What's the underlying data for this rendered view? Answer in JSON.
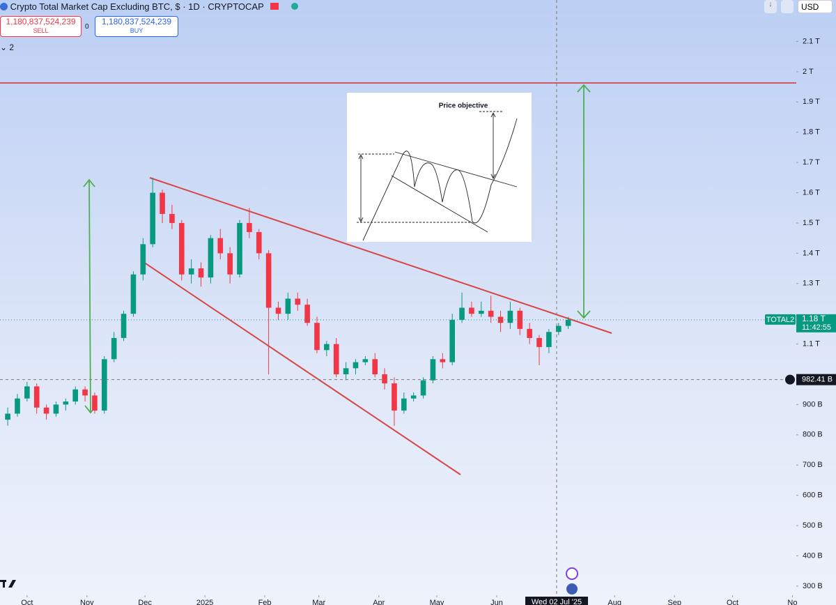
{
  "header": {
    "title": "Crypto Total Market Cap Excluding BTC, $ · 1D · CRYPTOCAP",
    "sell_price": "1,180,837,524,239",
    "sell_label": "SELL",
    "spread": "0",
    "buy_price": "1,180,837,524,239",
    "buy_label": "BUY",
    "indicators_count": "2",
    "currency": "USD"
  },
  "chart_data": {
    "type": "candlestick",
    "symbol_label": "TOTAL2",
    "x": [
      "2024-09-21",
      "2024-09-26",
      "2024-10-01",
      "2024-10-06",
      "2024-10-11",
      "2024-10-16",
      "2024-10-21",
      "2024-10-26",
      "2024-10-31",
      "2024-11-05",
      "2024-11-10",
      "2024-11-15",
      "2024-11-20",
      "2024-11-25",
      "2024-11-30",
      "2024-12-05",
      "2024-12-10",
      "2024-12-15",
      "2024-12-20",
      "2024-12-25",
      "2024-12-30",
      "2025-01-04",
      "2025-01-09",
      "2025-01-14",
      "2025-01-19",
      "2025-01-24",
      "2025-01-29",
      "2025-02-03",
      "2025-02-08",
      "2025-02-13",
      "2025-02-18",
      "2025-02-23",
      "2025-02-28",
      "2025-03-05",
      "2025-03-10",
      "2025-03-15",
      "2025-03-20",
      "2025-03-25",
      "2025-03-30",
      "2025-04-04",
      "2025-04-09",
      "2025-04-14",
      "2025-04-19",
      "2025-04-24",
      "2025-04-29",
      "2025-05-04",
      "2025-05-09",
      "2025-05-14",
      "2025-05-19",
      "2025-05-24",
      "2025-05-29",
      "2025-06-03",
      "2025-06-08",
      "2025-06-13",
      "2025-06-18",
      "2025-06-23",
      "2025-06-28",
      "2025-07-03",
      "2025-07-08"
    ],
    "open": [
      850,
      870,
      920,
      960,
      890,
      870,
      900,
      910,
      950,
      930,
      880,
      1050,
      1120,
      1200,
      1330,
      1430,
      1600,
      1530,
      1500,
      1330,
      1350,
      1320,
      1450,
      1400,
      1330,
      1500,
      1470,
      1400,
      1220,
      1200,
      1250,
      1230,
      1170,
      1080,
      1100,
      1000,
      1020,
      1040,
      1050,
      1000,
      970,
      880,
      920,
      930,
      980,
      1050,
      1040,
      1180,
      1220,
      1200,
      1210,
      1190,
      1170,
      1210,
      1150,
      1120,
      1090,
      1140,
      1160
    ],
    "high": [
      890,
      935,
      975,
      970,
      900,
      910,
      920,
      960,
      960,
      940,
      1060,
      1140,
      1210,
      1340,
      1450,
      1650,
      1610,
      1560,
      1510,
      1380,
      1370,
      1460,
      1480,
      1420,
      1510,
      1550,
      1480,
      1410,
      1240,
      1270,
      1270,
      1250,
      1190,
      1110,
      1120,
      1040,
      1050,
      1060,
      1070,
      1020,
      990,
      940,
      940,
      990,
      1060,
      1070,
      1200,
      1270,
      1240,
      1240,
      1260,
      1210,
      1240,
      1220,
      1170,
      1130,
      1150,
      1170,
      1190
    ],
    "low": [
      830,
      860,
      910,
      870,
      850,
      860,
      880,
      900,
      910,
      870,
      870,
      1040,
      1110,
      1190,
      1310,
      1420,
      1500,
      1480,
      1310,
      1300,
      1290,
      1300,
      1380,
      1300,
      1320,
      1450,
      1380,
      1000,
      1180,
      1180,
      1210,
      1160,
      1070,
      1060,
      990,
      980,
      1000,
      1030,
      990,
      950,
      830,
      870,
      910,
      920,
      970,
      1020,
      1030,
      1170,
      1190,
      1190,
      1170,
      1140,
      1150,
      1130,
      1100,
      1030,
      1070,
      1130,
      1150
    ],
    "close": [
      870,
      920,
      960,
      890,
      870,
      900,
      910,
      950,
      930,
      880,
      1050,
      1120,
      1200,
      1330,
      1430,
      1600,
      1530,
      1500,
      1330,
      1350,
      1320,
      1450,
      1400,
      1330,
      1500,
      1470,
      1400,
      1220,
      1200,
      1250,
      1230,
      1170,
      1080,
      1100,
      1000,
      1020,
      1040,
      1050,
      1000,
      970,
      880,
      920,
      930,
      980,
      1050,
      1040,
      1180,
      1220,
      1200,
      1210,
      1190,
      1170,
      1210,
      1150,
      1120,
      1090,
      1140,
      1160,
      1180
    ],
    "up_color": "#089981",
    "down_color": "#f23645",
    "xlim": [
      "2024-09-17",
      "2025-11-03"
    ],
    "xticks": [
      {
        "value": "2024-10-01",
        "label": "Oct"
      },
      {
        "value": "2024-11-01",
        "label": "Nov"
      },
      {
        "value": "2024-12-01",
        "label": "Dec"
      },
      {
        "value": "2025-01-01",
        "label": "2025"
      },
      {
        "value": "2025-02-01",
        "label": "Feb"
      },
      {
        "value": "2025-03-01",
        "label": "Mar"
      },
      {
        "value": "2025-04-01",
        "label": "Apr"
      },
      {
        "value": "2025-05-01",
        "label": "May"
      },
      {
        "value": "2025-06-01",
        "label": "Jun"
      },
      {
        "value": "2025-08-01",
        "label": "Aug"
      },
      {
        "value": "2025-09-01",
        "label": "Sep"
      },
      {
        "value": "2025-10-01",
        "label": "Oct"
      },
      {
        "value": "2025-11-01",
        "label": "No"
      }
    ],
    "ylim": [
      279,
      2237
    ],
    "yticks": [
      {
        "value": 2100,
        "label": "2.1 T"
      },
      {
        "value": 2000,
        "label": "2 T"
      },
      {
        "value": 1900,
        "label": "1.9 T"
      },
      {
        "value": 1800,
        "label": "1.8 T"
      },
      {
        "value": 1700,
        "label": "1.7 T"
      },
      {
        "value": 1600,
        "label": "1.6 T"
      },
      {
        "value": 1500,
        "label": "1.5 T"
      },
      {
        "value": 1400,
        "label": "1.4 T"
      },
      {
        "value": 1300,
        "label": "1.3 T"
      },
      {
        "value": 1100,
        "label": "1.1 T"
      },
      {
        "value": 900,
        "label": "900 B"
      },
      {
        "value": 800,
        "label": "800 B"
      },
      {
        "value": 700,
        "label": "700 B"
      },
      {
        "value": 600,
        "label": "600 B"
      },
      {
        "value": 500,
        "label": "500 B"
      },
      {
        "value": 400,
        "label": "400 B"
      },
      {
        "value": 300,
        "label": "300 B"
      }
    ],
    "last_price": {
      "value": 1180,
      "label": "1.18 T"
    },
    "countdown": "11:42:55",
    "crosshair": {
      "x": "2025-07-02",
      "x_label": "Wed 02 Jul '25",
      "y": 982.41,
      "y_label": "982.41 B"
    },
    "annotation": "Price objective"
  }
}
